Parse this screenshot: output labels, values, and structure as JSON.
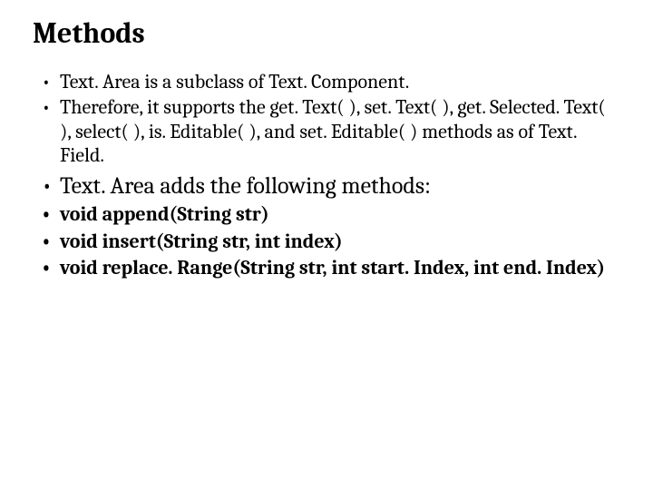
{
  "title": "Methods",
  "bullets": [
    {
      "cls": "b1",
      "text": "Text. Area is a subclass of Text. Component."
    },
    {
      "cls": "b1",
      "text": "Therefore, it supports the get. Text( ), set. Text( ), get. Selected. Text( ), select( ), is. Editable( ), and set. Editable( ) methods as of Text. Field."
    },
    {
      "cls": "b2",
      "text": "Text. Area adds the following methods:"
    },
    {
      "cls": "b3",
      "text": "void append(String str)"
    },
    {
      "cls": "b3",
      "text": "void insert(String str, int index)"
    },
    {
      "cls": "b3",
      "text": "void replace. Range(String str, int start. Index, int end. Index)"
    }
  ],
  "colors": {
    "background": "#ffffff",
    "text": "#000000"
  },
  "typography": {
    "title_fontsize": 32,
    "body_fontsize": 22,
    "highlight_fontsize": 26,
    "title_weight": 700,
    "bold_weight": 700,
    "normal_weight": 400,
    "font_family": "Cambria"
  }
}
